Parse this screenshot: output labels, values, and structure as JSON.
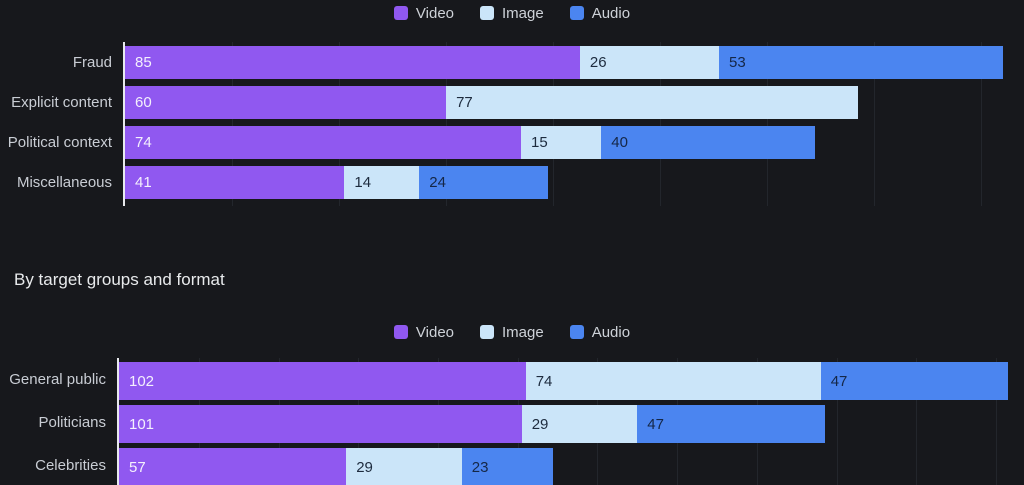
{
  "page": {
    "background_color": "#17181c",
    "axis_color": "#e8e9ed",
    "gridline_color": "#23262c",
    "section_title": "By target groups and format"
  },
  "chart_data": [
    {
      "type": "bar",
      "orientation": "horizontal",
      "stacked": true,
      "title": "",
      "grid": true,
      "legend_position": "top",
      "legend_labels": [
        "Video",
        "Image",
        "Audio"
      ],
      "categories": [
        "Fraud",
        "Explicit content",
        "Political context",
        "Miscellaneous"
      ],
      "series": [
        {
          "name": "Video",
          "color": "#9058f0",
          "label_color": "#f4f0fd",
          "values": [
            85,
            60,
            74,
            41
          ]
        },
        {
          "name": "Image",
          "color": "#cbe5f9",
          "label_color": "#1d2b3e",
          "values": [
            26,
            77,
            15,
            14
          ]
        },
        {
          "name": "Audio",
          "color": "#4b85f0",
          "label_color": "#152747",
          "values": [
            53,
            0,
            40,
            24
          ]
        }
      ],
      "xlim": [
        0,
        168
      ],
      "grid_interval": 20
    },
    {
      "type": "bar",
      "orientation": "horizontal",
      "stacked": true,
      "title": "By target groups and format",
      "grid": true,
      "legend_position": "top",
      "legend_labels": [
        "Video",
        "Image",
        "Audio"
      ],
      "categories": [
        "General public",
        "Politicians",
        "Celebrities"
      ],
      "series": [
        {
          "name": "Video",
          "color": "#9058f0",
          "label_color": "#f4f0fd",
          "values": [
            102,
            101,
            57
          ]
        },
        {
          "name": "Image",
          "color": "#cbe5f9",
          "label_color": "#1d2b3e",
          "values": [
            74,
            29,
            29
          ]
        },
        {
          "name": "Audio",
          "color": "#4b85f0",
          "label_color": "#152747",
          "values": [
            47,
            47,
            23
          ]
        }
      ],
      "xlim": [
        0,
        227
      ],
      "grid_interval": 20
    }
  ]
}
